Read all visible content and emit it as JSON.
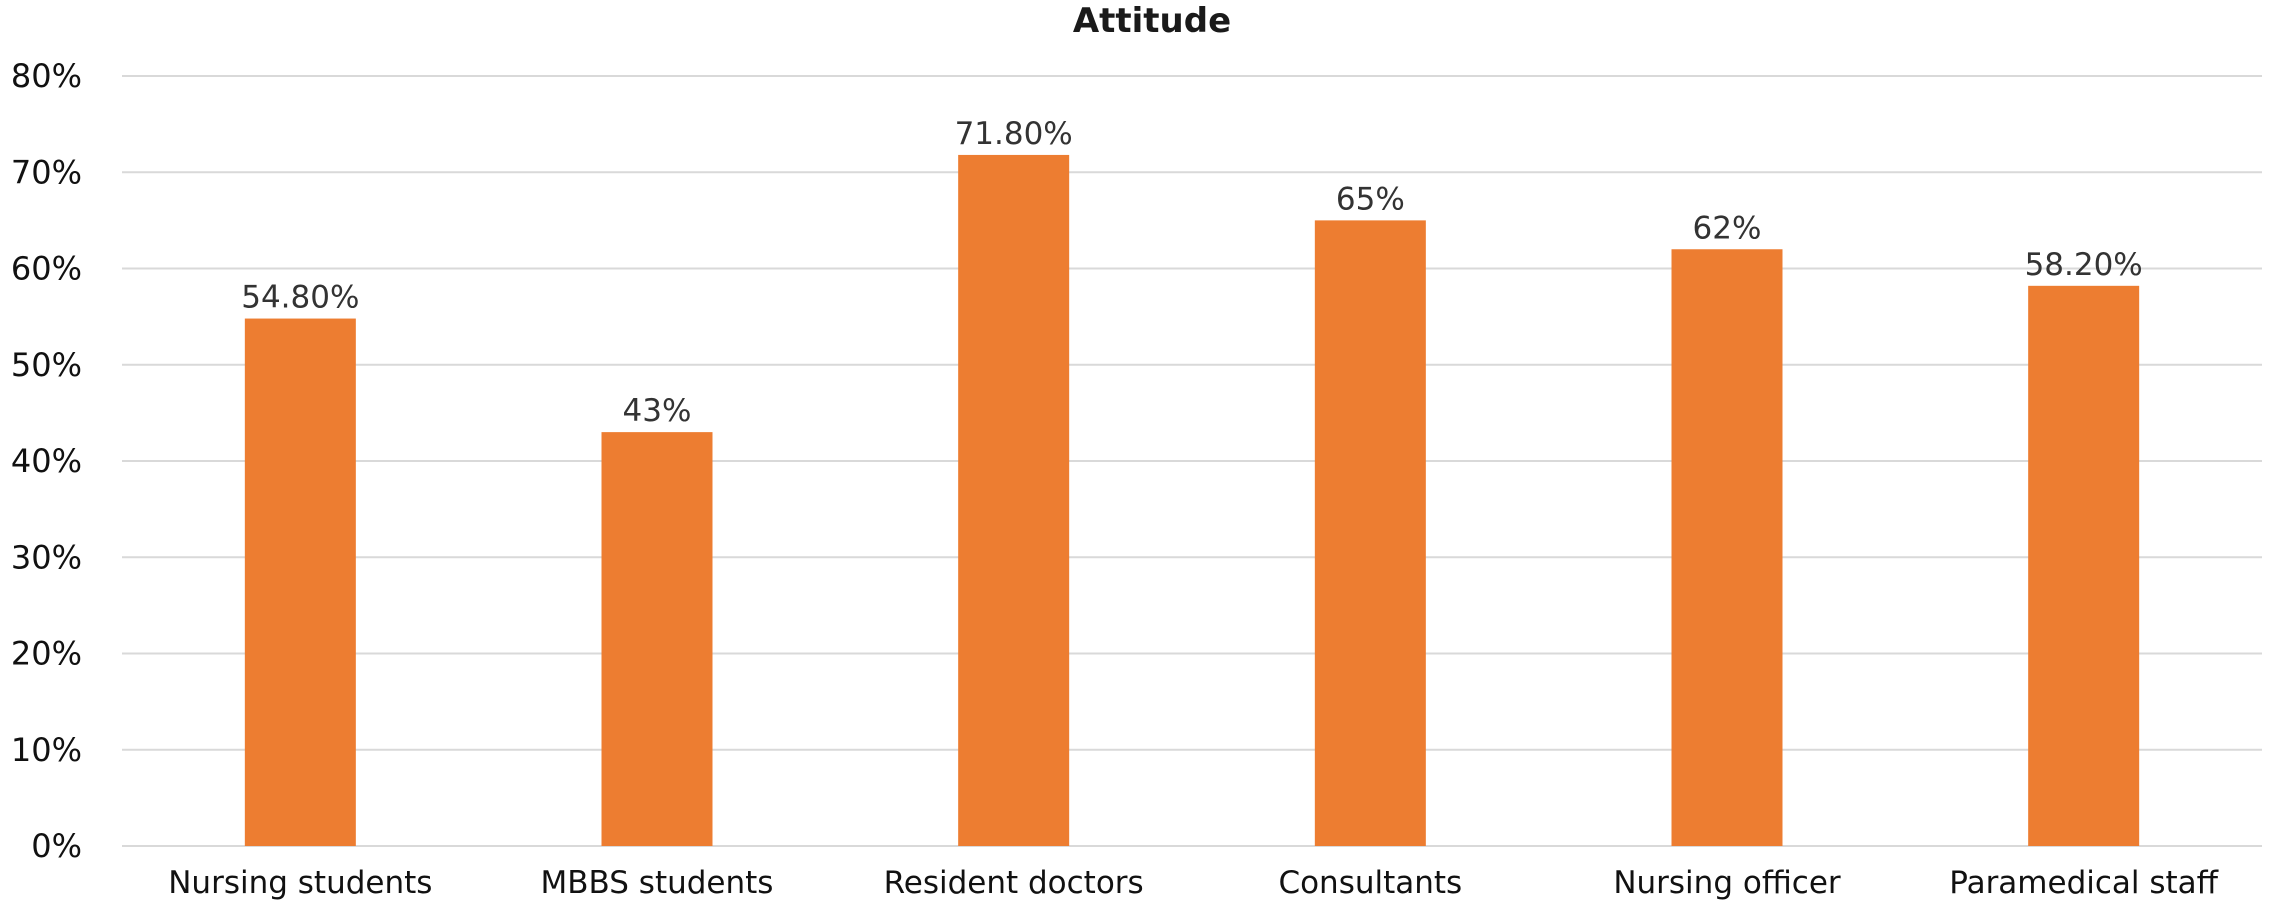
{
  "chart_data": {
    "type": "bar",
    "title": "Attitude",
    "xlabel": "",
    "ylabel": "",
    "ylim": [
      0,
      80
    ],
    "yticks": [
      0,
      10,
      20,
      30,
      40,
      50,
      60,
      70,
      80
    ],
    "ytick_labels": [
      "0%",
      "10%",
      "20%",
      "30%",
      "40%",
      "50%",
      "60%",
      "70%",
      "80%"
    ],
    "categories": [
      "Nursing students",
      "MBBS students",
      "Resident doctors",
      "Consultants",
      "Nursing officer",
      "Paramedical staff"
    ],
    "values": [
      54.8,
      43,
      71.8,
      65,
      62,
      58.2
    ],
    "data_labels": [
      "54.80%",
      "43%",
      "71.80%",
      "65%",
      "62%",
      "58.20%"
    ],
    "bar_color": "#ed7d31",
    "grid": true,
    "legend": "none"
  }
}
